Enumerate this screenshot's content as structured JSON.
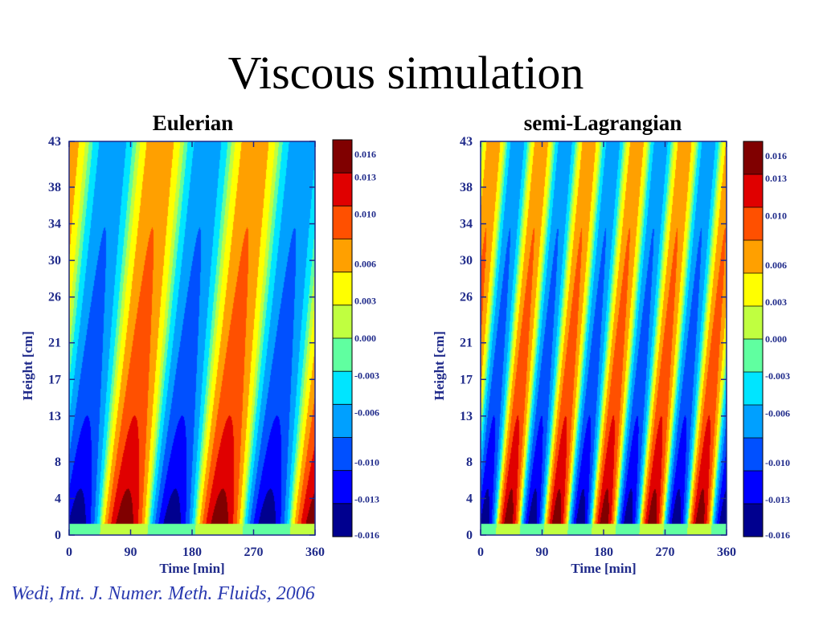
{
  "slide": {
    "title": "Viscous simulation",
    "citation": "Wedi, Int. J. Numer. Meth. Fluids, 2006"
  },
  "chart_data": [
    {
      "type": "heatmap",
      "title": "Eulerian",
      "xlabel": "Time [min]",
      "ylabel": "Height [cm]",
      "x_ticks": [
        "0",
        "90",
        "180",
        "270",
        "360"
      ],
      "y_ticks": [
        "0",
        "4",
        "8",
        "13",
        "17",
        "21",
        "26",
        "30",
        "34",
        "38",
        "43"
      ],
      "xlim": [
        0,
        360
      ],
      "ylim": [
        0,
        43
      ],
      "colorbar": {
        "labels": [
          "0.016",
          "0.013",
          "0.010",
          "0.006",
          "0.003",
          "0.000",
          "-0.003",
          "-0.006",
          "-0.010",
          "-0.013",
          "-0.016"
        ],
        "range": [
          -0.016,
          0.016
        ]
      },
      "pattern": {
        "period_min": 139,
        "phase_min": 45,
        "tilt_min_per_cm": 1.25
      }
    },
    {
      "type": "heatmap",
      "title": "semi-Lagrangian",
      "xlabel": "Time [min]",
      "ylabel": "Height [cm]",
      "x_ticks": [
        "0",
        "90",
        "180",
        "270",
        "360"
      ],
      "y_ticks": [
        "0",
        "4",
        "8",
        "13",
        "17",
        "21",
        "26",
        "30",
        "34",
        "38",
        "43"
      ],
      "xlim": [
        0,
        360
      ],
      "ylim": [
        0,
        43
      ],
      "colorbar": {
        "labels": [
          "0.016",
          "0.013",
          "0.010",
          "0.006",
          "0.003",
          "0.000",
          "-0.003",
          "-0.006",
          "-0.010",
          "-0.013",
          "-0.016"
        ],
        "range": [
          -0.016,
          0.016
        ]
      },
      "pattern": {
        "period_min": 70,
        "phase_min": 22,
        "tilt_min_per_cm": 1.15
      }
    }
  ],
  "colormap": [
    "#00008f",
    "#0000ff",
    "#0050ff",
    "#00a0ff",
    "#00e5ff",
    "#60ffa0",
    "#c0ff40",
    "#ffff00",
    "#ffa000",
    "#ff5000",
    "#e00000",
    "#800000"
  ]
}
